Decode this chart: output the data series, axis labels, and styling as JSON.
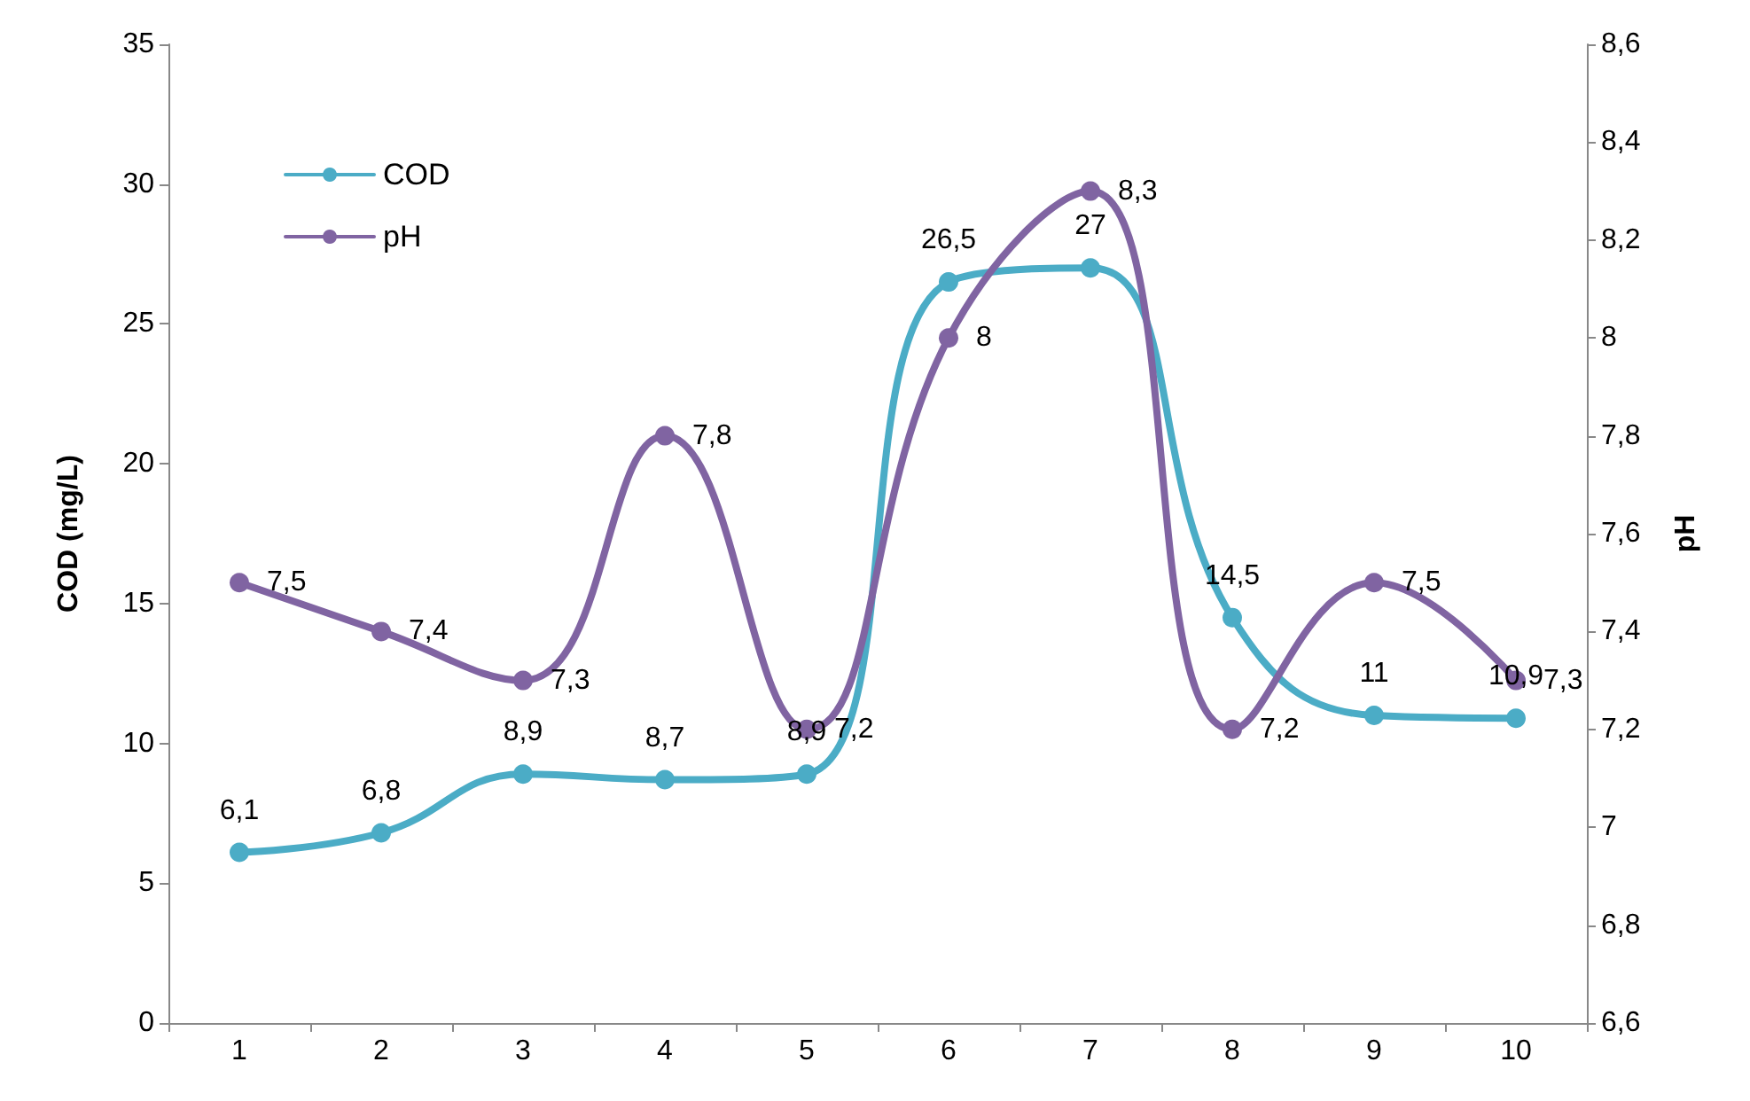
{
  "chart_data": {
    "type": "line",
    "ylabel": "COD (mg/L)",
    "y2label": "pH",
    "categories": [
      "1",
      "2",
      "3",
      "4",
      "5",
      "6",
      "7",
      "8",
      "9",
      "10"
    ],
    "series": [
      {
        "name": "COD",
        "color": "#4bacc6",
        "values": [
          6.1,
          6.8,
          8.9,
          8.7,
          8.9,
          26.5,
          27,
          14.5,
          11,
          10.9
        ],
        "value_labels": [
          "6,1",
          "6,8",
          "8,9",
          "8,7",
          "8,9",
          "26,5",
          "27",
          "14,5",
          "11",
          "10,9"
        ]
      },
      {
        "name": "pH",
        "color": "#8064a2",
        "axis": "y2",
        "values": [
          7.5,
          7.4,
          7.3,
          7.8,
          7.2,
          8,
          8.3,
          7.2,
          7.5,
          7.3
        ],
        "value_labels": [
          "7,5",
          "7,4",
          "7,3",
          "7,8",
          "7,2",
          "8",
          "8,3",
          "7,2",
          "7,5",
          "7,3"
        ]
      }
    ],
    "ylim": [
      0,
      35
    ],
    "yticks": [
      0,
      5,
      10,
      15,
      20,
      25,
      30,
      35
    ],
    "y2lim": [
      6.6,
      8.6
    ],
    "y2ticks": [
      {
        "value": 6.6,
        "label": "6,6"
      },
      {
        "value": 6.8,
        "label": "6,8"
      },
      {
        "value": 7,
        "label": "7"
      },
      {
        "value": 7.2,
        "label": "7,2"
      },
      {
        "value": 7.4,
        "label": "7,4"
      },
      {
        "value": 7.6,
        "label": "7,6"
      },
      {
        "value": 7.8,
        "label": "7,8"
      },
      {
        "value": 8,
        "label": "8"
      },
      {
        "value": 8.2,
        "label": "8,2"
      },
      {
        "value": 8.4,
        "label": "8,4"
      },
      {
        "value": 8.6,
        "label": "8,6"
      }
    ],
    "grid": false,
    "legend": "top left",
    "marker": "circle",
    "line_style": "solid"
  }
}
